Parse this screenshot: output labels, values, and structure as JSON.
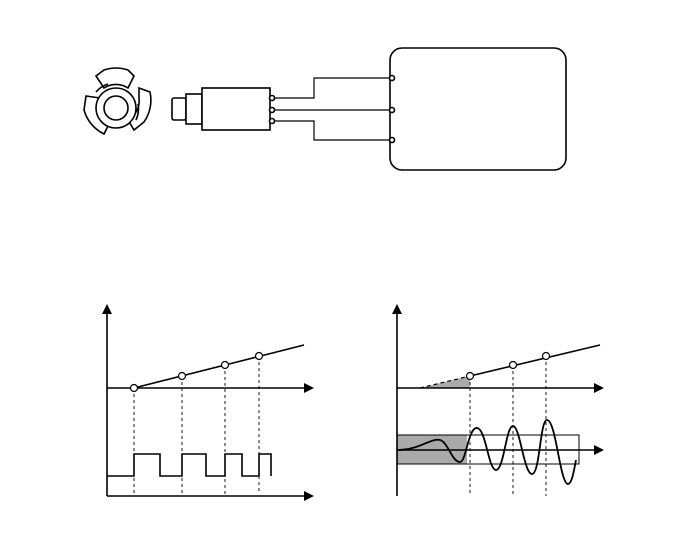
{
  "diagram": {
    "stroke_color": "#000000",
    "fill_color": "#ffffff",
    "shade_color": "#aaaaaa",
    "components": [
      {
        "name": "trigger-wheel",
        "icon": "three-lobed-reluctor-wheel"
      },
      {
        "name": "speed-sensor",
        "icon": "inductive-sensor-probe"
      },
      {
        "name": "wiring-harness",
        "wires": 3
      },
      {
        "name": "control-unit",
        "icon": "rounded-rectangle-box"
      }
    ],
    "left_graph": {
      "signal": "square-wave",
      "rising_points": 4
    },
    "right_graph": {
      "signal": "increasing-sine-wave",
      "rising_points": 3,
      "has_threshold_band": true
    }
  }
}
